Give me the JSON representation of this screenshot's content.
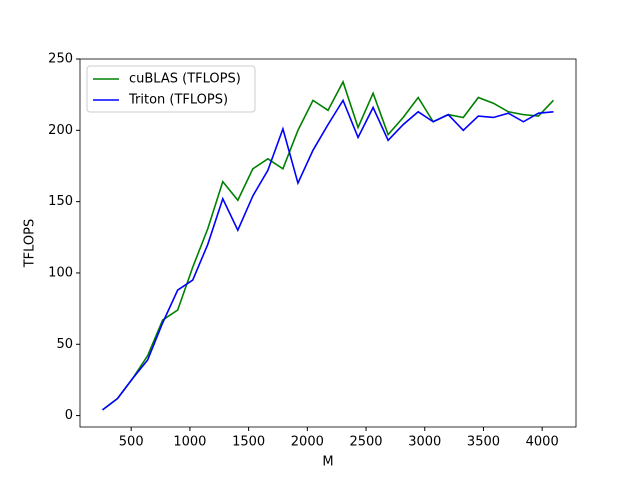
{
  "chart_data": {
    "type": "line",
    "xlabel": "M",
    "ylabel": "TFLOPS",
    "x": [
      256,
      384,
      512,
      640,
      768,
      896,
      1024,
      1152,
      1280,
      1408,
      1536,
      1664,
      1792,
      1920,
      2048,
      2176,
      2304,
      2432,
      2560,
      2688,
      2816,
      2944,
      3072,
      3200,
      3328,
      3456,
      3584,
      3712,
      3840,
      3968,
      4096
    ],
    "series": [
      {
        "name": "cuBLAS (TFLOPS)",
        "color": "#008000",
        "values": [
          4,
          12,
          26,
          42,
          67,
          74,
          104,
          131,
          164,
          151,
          173,
          180,
          173,
          200,
          221,
          214,
          234,
          202,
          226,
          197,
          209,
          223,
          206,
          211,
          209,
          223,
          219,
          213,
          211,
          210,
          221
        ]
      },
      {
        "name": "Triton (TFLOPS)",
        "color": "#0000ff",
        "values": [
          4,
          12,
          26,
          39,
          65,
          88,
          95,
          120,
          152,
          130,
          154,
          172,
          201,
          163,
          186,
          204,
          221,
          195,
          216,
          193,
          204,
          213,
          206,
          211,
          200,
          210,
          209,
          212,
          206,
          212,
          213
        ]
      }
    ],
    "xlim": [
      64,
      4288
    ],
    "xticks": [
      500,
      1000,
      1500,
      2000,
      2500,
      3000,
      3500,
      4000
    ],
    "ylim": [
      -8,
      250
    ],
    "yticks": [
      0,
      50,
      100,
      150,
      200,
      250
    ],
    "legend": "upper-left"
  }
}
